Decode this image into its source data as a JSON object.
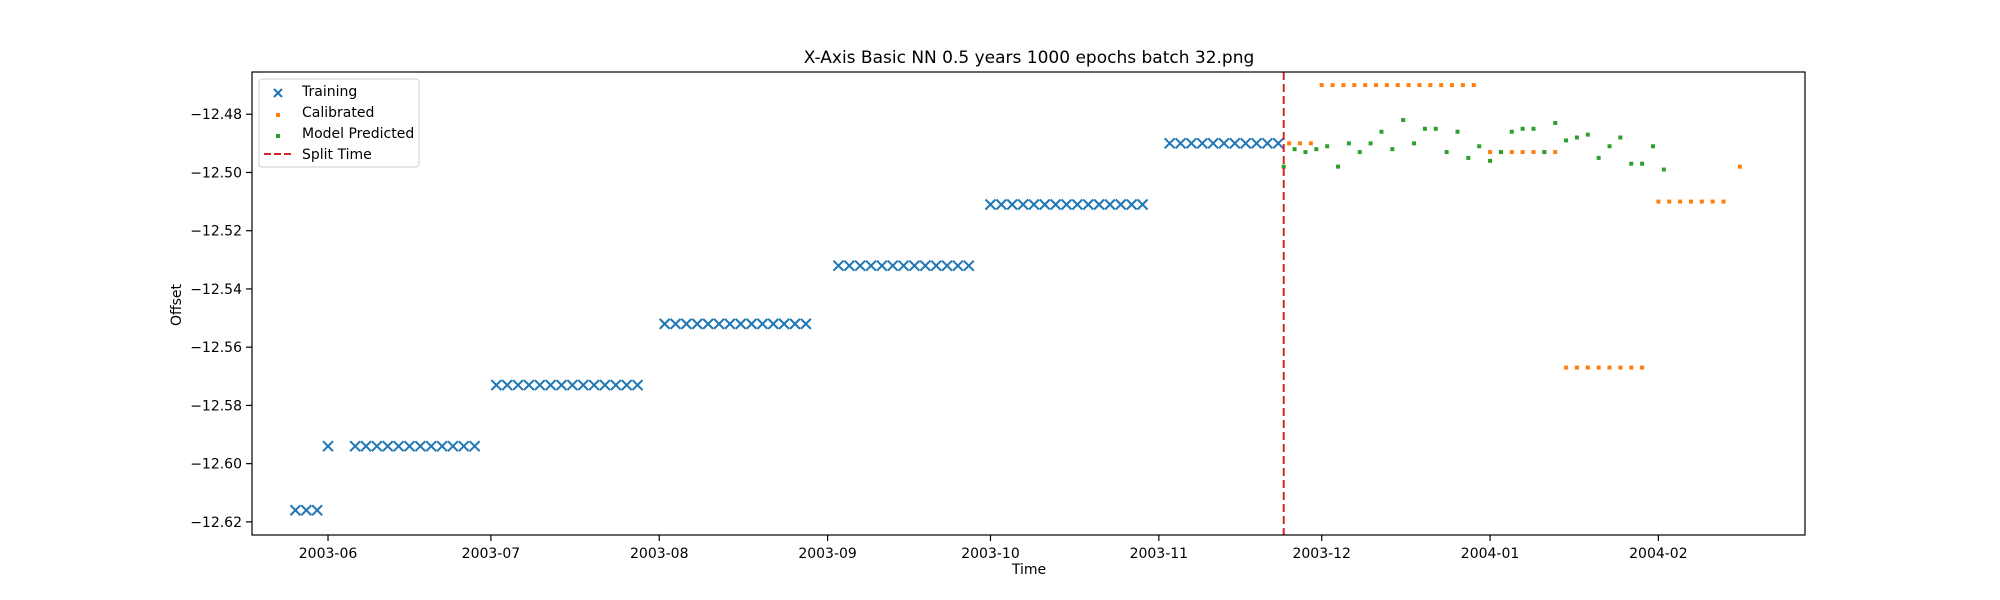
{
  "chart_data": {
    "type": "scatter",
    "title": "X-Axis Basic NN 0.5 years 1000 epochs batch 32.png",
    "xlabel": "Time",
    "ylabel": "Offset",
    "x_axis_type": "date",
    "xlim": [
      "2003-05-18",
      "2004-02-28"
    ],
    "ylim": [
      -12.6245,
      -12.4655
    ],
    "x_ticks": [
      "2003-06-01",
      "2003-07-01",
      "2003-08-01",
      "2003-09-01",
      "2003-10-01",
      "2003-11-01",
      "2003-12-01",
      "2004-01-01",
      "2004-02-01"
    ],
    "x_tick_labels": [
      "2003-06",
      "2003-07",
      "2003-08",
      "2003-09",
      "2003-10",
      "2003-11",
      "2003-12",
      "2004-01",
      "2004-02"
    ],
    "y_ticks": [
      -12.62,
      -12.6,
      -12.58,
      -12.56,
      -12.54,
      -12.52,
      -12.5,
      -12.48
    ],
    "y_tick_labels": [
      "−12.62",
      "−12.60",
      "−12.58",
      "−12.56",
      "−12.54",
      "−12.52",
      "−12.50",
      "−12.48"
    ],
    "grid": false,
    "legend_position": "top-left",
    "split_time": "2003-11-24",
    "series": [
      {
        "name": "Training",
        "marker": "x",
        "color": "#1f77b4",
        "points": [
          [
            "2003-05-26",
            -12.616
          ],
          [
            "2003-05-28",
            -12.616
          ],
          [
            "2003-05-30",
            -12.616
          ],
          [
            "2003-06-01",
            -12.594
          ],
          [
            "2003-06-06",
            -12.594
          ],
          [
            "2003-06-08",
            -12.594
          ],
          [
            "2003-06-10",
            -12.594
          ],
          [
            "2003-06-12",
            -12.594
          ],
          [
            "2003-06-14",
            -12.594
          ],
          [
            "2003-06-16",
            -12.594
          ],
          [
            "2003-06-18",
            -12.594
          ],
          [
            "2003-06-20",
            -12.594
          ],
          [
            "2003-06-22",
            -12.594
          ],
          [
            "2003-06-24",
            -12.594
          ],
          [
            "2003-06-26",
            -12.594
          ],
          [
            "2003-06-28",
            -12.594
          ],
          [
            "2003-07-02",
            -12.573
          ],
          [
            "2003-07-04",
            -12.573
          ],
          [
            "2003-07-06",
            -12.573
          ],
          [
            "2003-07-08",
            -12.573
          ],
          [
            "2003-07-10",
            -12.573
          ],
          [
            "2003-07-12",
            -12.573
          ],
          [
            "2003-07-14",
            -12.573
          ],
          [
            "2003-07-16",
            -12.573
          ],
          [
            "2003-07-18",
            -12.573
          ],
          [
            "2003-07-20",
            -12.573
          ],
          [
            "2003-07-22",
            -12.573
          ],
          [
            "2003-07-24",
            -12.573
          ],
          [
            "2003-07-26",
            -12.573
          ],
          [
            "2003-07-28",
            -12.573
          ],
          [
            "2003-08-02",
            -12.552
          ],
          [
            "2003-08-04",
            -12.552
          ],
          [
            "2003-08-06",
            -12.552
          ],
          [
            "2003-08-08",
            -12.552
          ],
          [
            "2003-08-10",
            -12.552
          ],
          [
            "2003-08-12",
            -12.552
          ],
          [
            "2003-08-14",
            -12.552
          ],
          [
            "2003-08-16",
            -12.552
          ],
          [
            "2003-08-18",
            -12.552
          ],
          [
            "2003-08-20",
            -12.552
          ],
          [
            "2003-08-22",
            -12.552
          ],
          [
            "2003-08-24",
            -12.552
          ],
          [
            "2003-08-26",
            -12.552
          ],
          [
            "2003-08-28",
            -12.552
          ],
          [
            "2003-09-03",
            -12.532
          ],
          [
            "2003-09-05",
            -12.532
          ],
          [
            "2003-09-07",
            -12.532
          ],
          [
            "2003-09-09",
            -12.532
          ],
          [
            "2003-09-11",
            -12.532
          ],
          [
            "2003-09-13",
            -12.532
          ],
          [
            "2003-09-15",
            -12.532
          ],
          [
            "2003-09-17",
            -12.532
          ],
          [
            "2003-09-19",
            -12.532
          ],
          [
            "2003-09-21",
            -12.532
          ],
          [
            "2003-09-23",
            -12.532
          ],
          [
            "2003-09-25",
            -12.532
          ],
          [
            "2003-09-27",
            -12.532
          ],
          [
            "2003-10-01",
            -12.511
          ],
          [
            "2003-10-03",
            -12.511
          ],
          [
            "2003-10-05",
            -12.511
          ],
          [
            "2003-10-07",
            -12.511
          ],
          [
            "2003-10-09",
            -12.511
          ],
          [
            "2003-10-11",
            -12.511
          ],
          [
            "2003-10-13",
            -12.511
          ],
          [
            "2003-10-15",
            -12.511
          ],
          [
            "2003-10-17",
            -12.511
          ],
          [
            "2003-10-19",
            -12.511
          ],
          [
            "2003-10-21",
            -12.511
          ],
          [
            "2003-10-23",
            -12.511
          ],
          [
            "2003-10-25",
            -12.511
          ],
          [
            "2003-10-27",
            -12.511
          ],
          [
            "2003-10-29",
            -12.511
          ],
          [
            "2003-11-03",
            -12.49
          ],
          [
            "2003-11-05",
            -12.49
          ],
          [
            "2003-11-07",
            -12.49
          ],
          [
            "2003-11-09",
            -12.49
          ],
          [
            "2003-11-11",
            -12.49
          ],
          [
            "2003-11-13",
            -12.49
          ],
          [
            "2003-11-15",
            -12.49
          ],
          [
            "2003-11-17",
            -12.49
          ],
          [
            "2003-11-19",
            -12.49
          ],
          [
            "2003-11-21",
            -12.49
          ],
          [
            "2003-11-23",
            -12.49
          ]
        ]
      },
      {
        "name": "Calibrated",
        "marker": "s",
        "color": "#ff7f0e",
        "points": [
          [
            "2003-11-25",
            -12.49
          ],
          [
            "2003-11-27",
            -12.49
          ],
          [
            "2003-11-29",
            -12.49
          ],
          [
            "2003-12-01",
            -12.47
          ],
          [
            "2003-12-03",
            -12.47
          ],
          [
            "2003-12-05",
            -12.47
          ],
          [
            "2003-12-07",
            -12.47
          ],
          [
            "2003-12-09",
            -12.47
          ],
          [
            "2003-12-11",
            -12.47
          ],
          [
            "2003-12-13",
            -12.47
          ],
          [
            "2003-12-15",
            -12.47
          ],
          [
            "2003-12-17",
            -12.47
          ],
          [
            "2003-12-19",
            -12.47
          ],
          [
            "2003-12-21",
            -12.47
          ],
          [
            "2003-12-23",
            -12.47
          ],
          [
            "2003-12-25",
            -12.47
          ],
          [
            "2003-12-27",
            -12.47
          ],
          [
            "2003-12-29",
            -12.47
          ],
          [
            "2004-01-01",
            -12.493
          ],
          [
            "2004-01-03",
            -12.493
          ],
          [
            "2004-01-05",
            -12.493
          ],
          [
            "2004-01-07",
            -12.493
          ],
          [
            "2004-01-09",
            -12.493
          ],
          [
            "2004-01-11",
            -12.493
          ],
          [
            "2004-01-13",
            -12.493
          ],
          [
            "2004-01-15",
            -12.567
          ],
          [
            "2004-01-17",
            -12.567
          ],
          [
            "2004-01-19",
            -12.567
          ],
          [
            "2004-01-21",
            -12.567
          ],
          [
            "2004-01-23",
            -12.567
          ],
          [
            "2004-01-25",
            -12.567
          ],
          [
            "2004-01-27",
            -12.567
          ],
          [
            "2004-01-29",
            -12.567
          ],
          [
            "2004-02-01",
            -12.51
          ],
          [
            "2004-02-03",
            -12.51
          ],
          [
            "2004-02-05",
            -12.51
          ],
          [
            "2004-02-07",
            -12.51
          ],
          [
            "2004-02-09",
            -12.51
          ],
          [
            "2004-02-11",
            -12.51
          ],
          [
            "2004-02-13",
            -12.51
          ],
          [
            "2004-02-16",
            -12.498
          ]
        ]
      },
      {
        "name": "Model Predicted",
        "marker": "s",
        "color": "#2ca02c",
        "points": [
          [
            "2003-11-24",
            -12.498
          ],
          [
            "2003-11-26",
            -12.492
          ],
          [
            "2003-11-28",
            -12.493
          ],
          [
            "2003-11-30",
            -12.492
          ],
          [
            "2003-12-02",
            -12.491
          ],
          [
            "2003-12-04",
            -12.498
          ],
          [
            "2003-12-06",
            -12.49
          ],
          [
            "2003-12-08",
            -12.493
          ],
          [
            "2003-12-10",
            -12.49
          ],
          [
            "2003-12-12",
            -12.486
          ],
          [
            "2003-12-14",
            -12.492
          ],
          [
            "2003-12-16",
            -12.482
          ],
          [
            "2003-12-18",
            -12.49
          ],
          [
            "2003-12-20",
            -12.485
          ],
          [
            "2003-12-22",
            -12.485
          ],
          [
            "2003-12-24",
            -12.493
          ],
          [
            "2003-12-26",
            -12.486
          ],
          [
            "2003-12-28",
            -12.495
          ],
          [
            "2003-12-30",
            -12.491
          ],
          [
            "2004-01-01",
            -12.496
          ],
          [
            "2004-01-03",
            -12.493
          ],
          [
            "2004-01-05",
            -12.486
          ],
          [
            "2004-01-07",
            -12.485
          ],
          [
            "2004-01-09",
            -12.485
          ],
          [
            "2004-01-11",
            -12.493
          ],
          [
            "2004-01-13",
            -12.483
          ],
          [
            "2004-01-15",
            -12.489
          ],
          [
            "2004-01-17",
            -12.488
          ],
          [
            "2004-01-19",
            -12.487
          ],
          [
            "2004-01-21",
            -12.495
          ],
          [
            "2004-01-23",
            -12.491
          ],
          [
            "2004-01-25",
            -12.488
          ],
          [
            "2004-01-27",
            -12.497
          ],
          [
            "2004-01-29",
            -12.497
          ],
          [
            "2004-01-31",
            -12.491
          ],
          [
            "2004-02-02",
            -12.499
          ]
        ]
      },
      {
        "name": "Split Time",
        "marker": "dashed-line",
        "color": "#d62728"
      }
    ]
  }
}
